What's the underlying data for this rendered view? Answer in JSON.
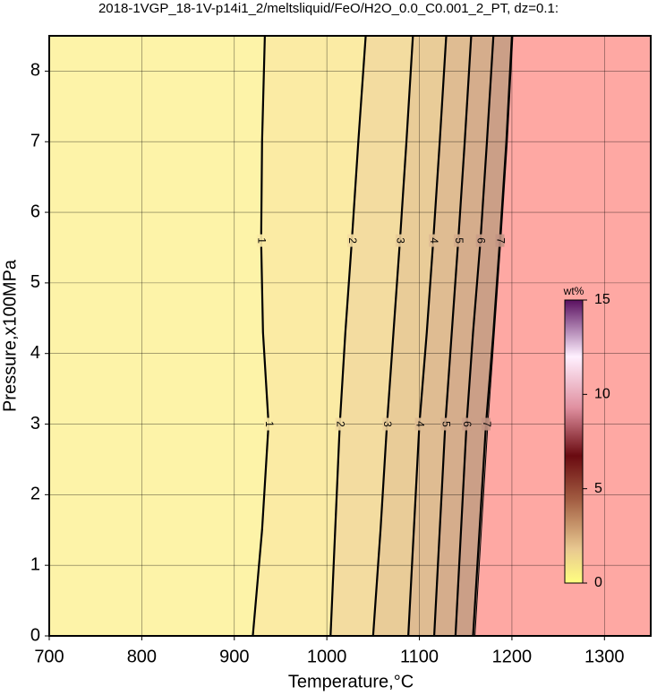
{
  "chart_data": {
    "type": "contour",
    "title": "2018-1VGP_18-1V-p14i1_2/meltsliquid/FeO/H2O_0.0_C0.001_2_PT, dz=0.1:",
    "x_label": "Temperature,°C",
    "y_label": "Pressure,x100MPa",
    "xlim": [
      700,
      1350
    ],
    "ylim": [
      0,
      8.5
    ],
    "xticks": [
      700,
      800,
      900,
      1000,
      1100,
      1200,
      1300
    ],
    "yticks": [
      0,
      1,
      2,
      3,
      4,
      5,
      6,
      7,
      8
    ],
    "grid": true,
    "y": [
      0,
      1.5,
      3,
      4.3,
      5.6,
      7,
      8.5
    ],
    "contours": [
      {
        "label": "1",
        "x": [
          920,
          930,
          937,
          931,
          929,
          930,
          933
        ]
      },
      {
        "label": "2",
        "x": [
          1004,
          1009,
          1014,
          1020,
          1027,
          1034,
          1042
        ]
      },
      {
        "label": "3",
        "x": [
          1050,
          1058,
          1065,
          1072,
          1079,
          1086,
          1093
        ]
      },
      {
        "label": "4",
        "x": [
          1088,
          1094,
          1100,
          1108,
          1115,
          1122,
          1129
        ]
      },
      {
        "label": "5",
        "x": [
          1116,
          1122,
          1128,
          1135,
          1142,
          1149,
          1156
        ]
      },
      {
        "label": "6",
        "x": [
          1139,
          1145,
          1151,
          1158,
          1166,
          1173,
          1180
        ]
      },
      {
        "label": "7",
        "x": [
          1158,
          1165,
          1172,
          1180,
          1187,
          1194,
          1200
        ]
      }
    ],
    "boundary_x": [
      1160,
      1167,
      1174,
      1181,
      1188,
      1195,
      1201
    ],
    "colorbar": {
      "label": "wt%",
      "lim": [
        0,
        15
      ],
      "ticks": [
        0,
        5,
        10,
        15
      ]
    }
  }
}
